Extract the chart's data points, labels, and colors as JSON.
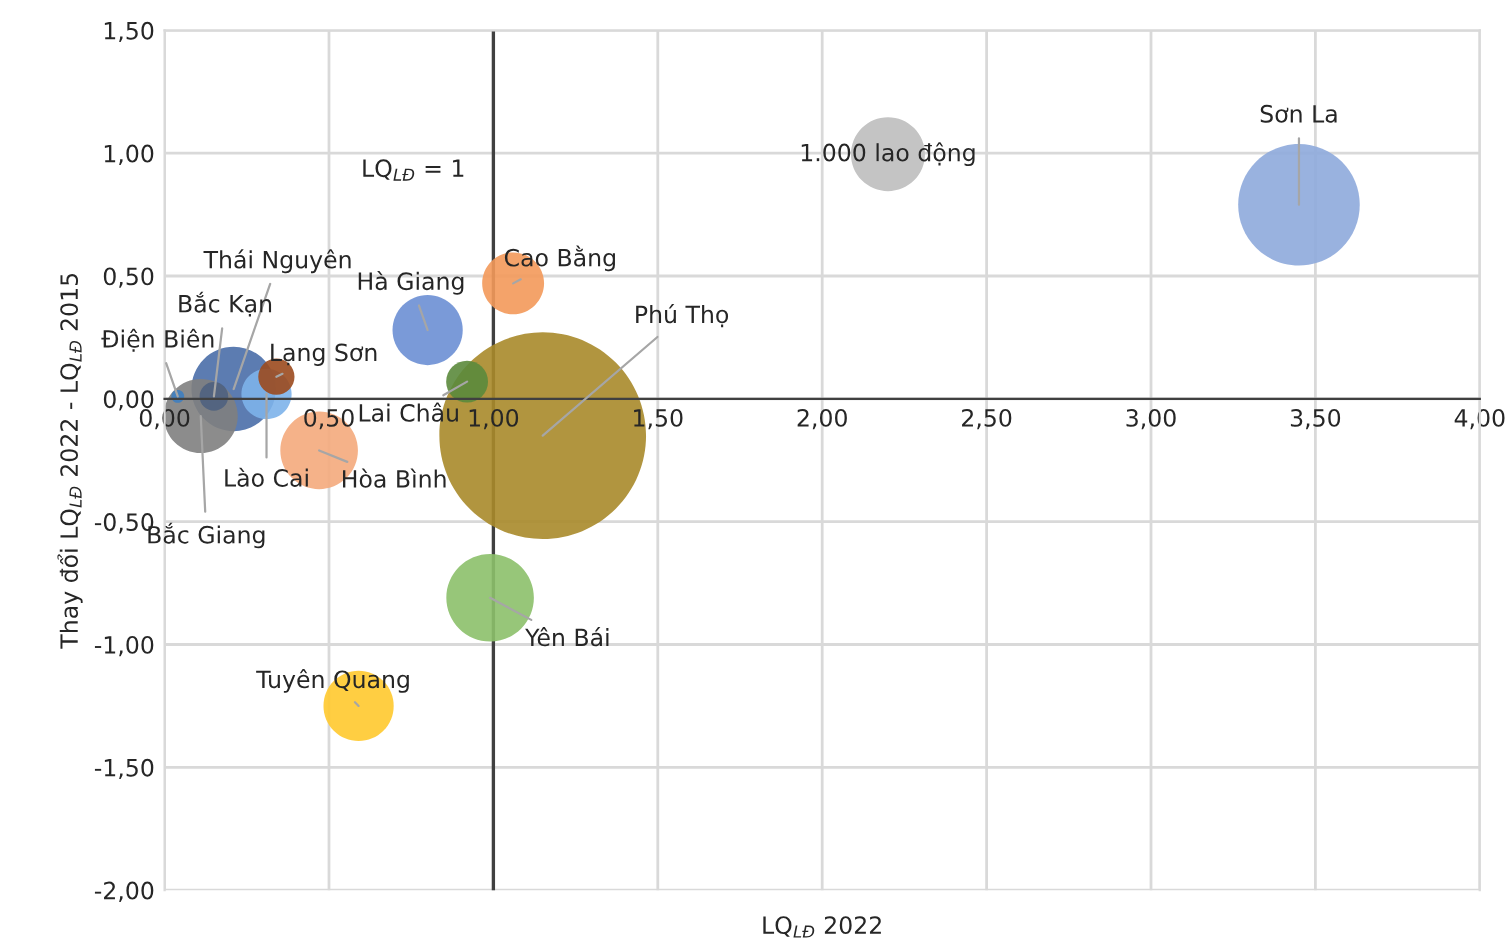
{
  "chart_data": {
    "type": "bubble",
    "xlabel": "LQ$_{LĐ}$ 2022",
    "ylabel": "Thay đổi LQ$_{LĐ}$ 2022 - LQ$_{LĐ}$ 2015",
    "xlim": [
      0,
      4
    ],
    "ylim": [
      -2,
      1.5
    ],
    "xticks": [
      {
        "value": 0,
        "label": "0,00"
      },
      {
        "value": 0.5,
        "label": "0,50"
      },
      {
        "value": 1,
        "label": "1,00"
      },
      {
        "value": 1.5,
        "label": "1,50"
      },
      {
        "value": 2,
        "label": "2,00"
      },
      {
        "value": 2.5,
        "label": "2,50"
      },
      {
        "value": 3,
        "label": "3,00"
      },
      {
        "value": 3.5,
        "label": "3,50"
      },
      {
        "value": 4,
        "label": "4,00"
      }
    ],
    "yticks": [
      {
        "value": -2,
        "label": "-2,00"
      },
      {
        "value": -1.5,
        "label": "-1,50"
      },
      {
        "value": -1,
        "label": "-1,00"
      },
      {
        "value": -0.5,
        "label": "-0,50"
      },
      {
        "value": 0,
        "label": "0,00"
      },
      {
        "value": 0.5,
        "label": "0,50"
      },
      {
        "value": 1,
        "label": "1,00"
      },
      {
        "value": 1.5,
        "label": "1,50"
      }
    ],
    "grid": true,
    "size_legend": [
      {
        "value": 1000,
        "label": "1.000 lao động"
      }
    ],
    "ref_lines": [
      {
        "axis": "x",
        "value": 1,
        "label": "LQ$_{LĐ}$ = 1",
        "color": "#404040"
      }
    ],
    "series": [
      {
        "name": "Phú Thọ",
        "color": "#a88a2a",
        "x": [
          1.15
        ],
        "values": [
          -0.15
        ],
        "sizes": [
          7800
        ]
      },
      {
        "name": "Sơn La",
        "color": "#8eaadb",
        "x": [
          3.45
        ],
        "values": [
          0.79
        ],
        "sizes": [
          2700
        ]
      },
      {
        "name": "Yên Bái",
        "color": "#8cc06a",
        "x": [
          0.99
        ],
        "values": [
          -0.81
        ],
        "sizes": [
          1400
        ]
      },
      {
        "name": "Thái Nguyên",
        "color": "#4a6ea8",
        "x": [
          0.21
        ],
        "values": [
          0.04
        ],
        "sizes": [
          1300
        ]
      },
      {
        "name": "Hòa Bình",
        "color": "#f4aa7c",
        "x": [
          0.47
        ],
        "values": [
          -0.21
        ],
        "sizes": [
          1100
        ]
      },
      {
        "name": "Bắc Giang",
        "color": "#7f7f7f",
        "x": [
          0.11
        ],
        "values": [
          -0.07
        ],
        "sizes": [
          1000
        ]
      },
      {
        "name": "Tuyên Quang",
        "color": "#ffc92e",
        "x": [
          0.59
        ],
        "values": [
          -1.25
        ],
        "sizes": [
          900
        ]
      },
      {
        "name": "Hà Giang",
        "color": "#6b8fd4",
        "x": [
          0.8
        ],
        "values": [
          0.28
        ],
        "sizes": [
          900
        ]
      },
      {
        "name": "Cao Bằng",
        "color": "#f3995a",
        "x": [
          1.06
        ],
        "values": [
          0.47
        ],
        "sizes": [
          700
        ]
      },
      {
        "name": "Lào Cai",
        "color": "#7db3ea",
        "x": [
          0.31
        ],
        "values": [
          0.02
        ],
        "sizes": [
          460
        ]
      },
      {
        "name": "Lai Châu",
        "color": "#5b8a3c",
        "x": [
          0.92
        ],
        "values": [
          0.07
        ],
        "sizes": [
          320
        ]
      },
      {
        "name": "Lạng Sơn",
        "color": "#9b4a1e",
        "x": [
          0.34
        ],
        "values": [
          0.09
        ],
        "sizes": [
          240
        ]
      },
      {
        "name": "Bắc Kạn",
        "color": "#4f6280",
        "x": [
          0.15
        ],
        "values": [
          0.01
        ],
        "sizes": [
          150
        ]
      },
      {
        "name": "Điện Biên",
        "color": "#3e7ec0",
        "x": [
          0.04
        ],
        "values": [
          0.01
        ],
        "sizes": [
          30
        ]
      }
    ]
  }
}
